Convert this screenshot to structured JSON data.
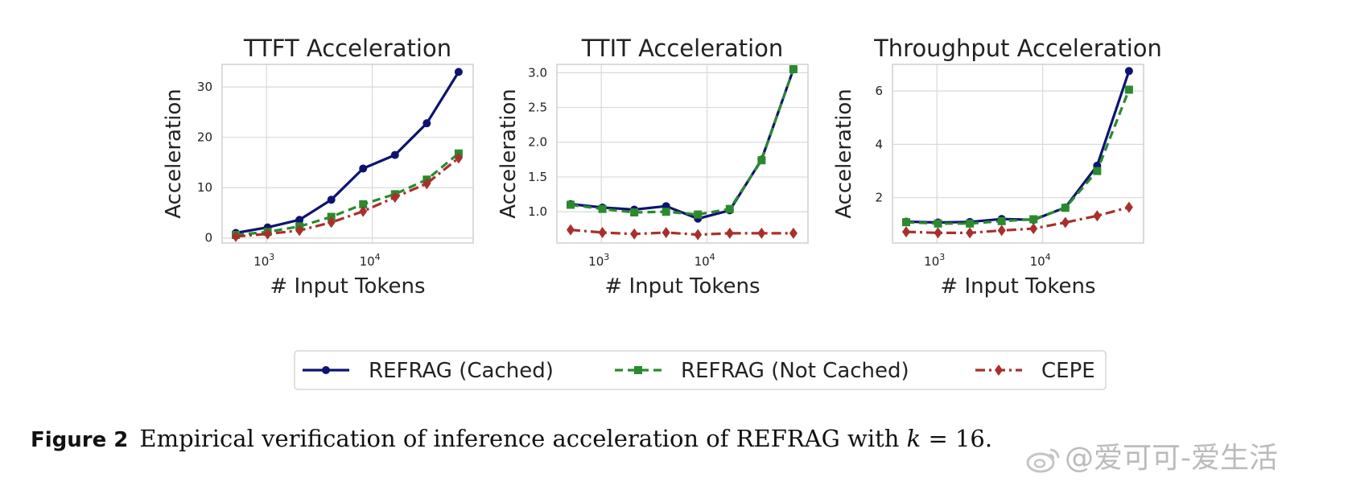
{
  "chart_data": [
    {
      "type": "line",
      "title": "TTFT Acceleration",
      "xlabel": "# Input Tokens",
      "ylabel": "Acceleration",
      "xscale": "log",
      "xlim": [
        380,
        90000
      ],
      "ylim": [
        -1,
        34.5
      ],
      "yticks": [
        0,
        10,
        20,
        30
      ],
      "ytick_labels": [
        "0",
        "10",
        "20",
        "30"
      ],
      "xticks": [
        1000,
        10000
      ],
      "xtick_labels": [
        "10",
        "10"
      ],
      "xtick_exponents": [
        "3",
        "4"
      ],
      "grid": true,
      "x": [
        512,
        1024,
        2048,
        4096,
        8192,
        16384,
        32768,
        65536
      ],
      "series": [
        {
          "name": "REFRAG (Cached)",
          "values": [
            1.0,
            2.1,
            3.6,
            7.6,
            13.8,
            16.5,
            22.8,
            33.0
          ]
        },
        {
          "name": "REFRAG (Not Cached)",
          "values": [
            0.6,
            1.2,
            2.3,
            4.2,
            6.7,
            8.7,
            11.6,
            16.8
          ]
        },
        {
          "name": "CEPE",
          "values": [
            0.3,
            0.8,
            1.5,
            3.1,
            5.3,
            8.1,
            10.8,
            15.9
          ]
        }
      ]
    },
    {
      "type": "line",
      "title": "TTIT Acceleration",
      "xlabel": "# Input Tokens",
      "ylabel": "Acceleration",
      "xscale": "log",
      "xlim": [
        380,
        90000
      ],
      "ylim": [
        0.55,
        3.12
      ],
      "yticks": [
        1.0,
        1.5,
        2.0,
        2.5,
        3.0
      ],
      "ytick_labels": [
        "1.0",
        "1.5",
        "2.0",
        "2.5",
        "3.0"
      ],
      "xticks": [
        1000,
        10000
      ],
      "xtick_labels": [
        "10",
        "10"
      ],
      "xtick_exponents": [
        "3",
        "4"
      ],
      "grid": true,
      "x": [
        512,
        1024,
        2048,
        4096,
        8192,
        16384,
        32768,
        65536
      ],
      "series": [
        {
          "name": "REFRAG (Cached)",
          "values": [
            1.11,
            1.06,
            1.03,
            1.08,
            0.9,
            1.02,
            1.75,
            3.05
          ]
        },
        {
          "name": "REFRAG (Not Cached)",
          "values": [
            1.1,
            1.04,
            0.99,
            1.0,
            0.96,
            1.04,
            1.74,
            3.05
          ]
        },
        {
          "name": "CEPE",
          "values": [
            0.74,
            0.7,
            0.68,
            0.7,
            0.67,
            0.69,
            0.69,
            0.69
          ]
        }
      ]
    },
    {
      "type": "line",
      "title": "Throughput Acceleration",
      "xlabel": "# Input Tokens",
      "ylabel": "Acceleration",
      "xscale": "log",
      "xlim": [
        380,
        90000
      ],
      "ylim": [
        0.3,
        7.0
      ],
      "yticks": [
        2,
        4,
        6
      ],
      "ytick_labels": [
        "2",
        "4",
        "6"
      ],
      "xticks": [
        1000,
        10000
      ],
      "xtick_labels": [
        "10",
        "10"
      ],
      "xtick_exponents": [
        "3",
        "4"
      ],
      "grid": true,
      "x": [
        512,
        1024,
        2048,
        4096,
        8192,
        16384,
        32768,
        65536
      ],
      "series": [
        {
          "name": "REFRAG (Cached)",
          "values": [
            1.1,
            1.07,
            1.09,
            1.2,
            1.17,
            1.63,
            3.2,
            6.75
          ]
        },
        {
          "name": "REFRAG (Not Cached)",
          "values": [
            1.08,
            1.03,
            1.03,
            1.12,
            1.19,
            1.62,
            3.0,
            6.05
          ]
        },
        {
          "name": "CEPE",
          "values": [
            0.72,
            0.68,
            0.68,
            0.77,
            0.84,
            1.07,
            1.32,
            1.64
          ]
        }
      ]
    }
  ],
  "legend": {
    "placement": "bottom-center",
    "entries": [
      {
        "label": "REFRAG (Cached)",
        "color": "#0d1470",
        "marker": "circle",
        "linestyle": "solid"
      },
      {
        "label": "REFRAG (Not Cached)",
        "color": "#2a8a2e",
        "marker": "square",
        "linestyle": "dashed"
      },
      {
        "label": "CEPE",
        "color": "#a8302c",
        "marker": "diamond",
        "linestyle": "dashdot"
      }
    ]
  },
  "caption": {
    "label": "Figure 2",
    "text": "Empirical verification of inference acceleration of REFRAG with ",
    "math_var": "k",
    "math_rest": " = 16."
  },
  "watermark": {
    "text": "@爱可可-爱生活",
    "icon": "weibo-icon"
  }
}
